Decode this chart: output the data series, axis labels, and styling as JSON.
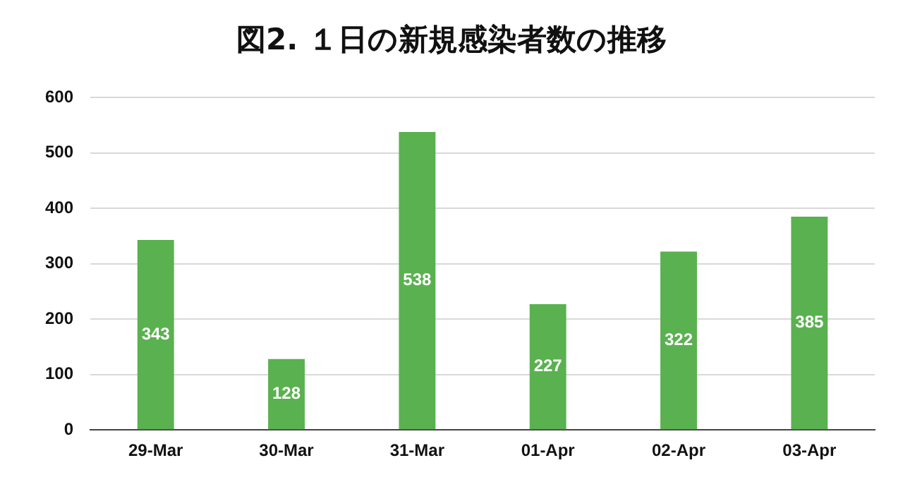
{
  "chart_data": {
    "type": "bar",
    "title": "図2. １日の新規感染者数の推移",
    "categories": [
      "29-Mar",
      "30-Mar",
      "31-Mar",
      "01-Apr",
      "02-Apr",
      "03-Apr"
    ],
    "values": [
      343,
      128,
      538,
      227,
      322,
      385
    ],
    "color": "#5ab14f",
    "ylim": [
      0,
      600
    ],
    "yticks": [
      0,
      100,
      200,
      300,
      400,
      500,
      600
    ],
    "grid": "y",
    "data_labels": true
  }
}
